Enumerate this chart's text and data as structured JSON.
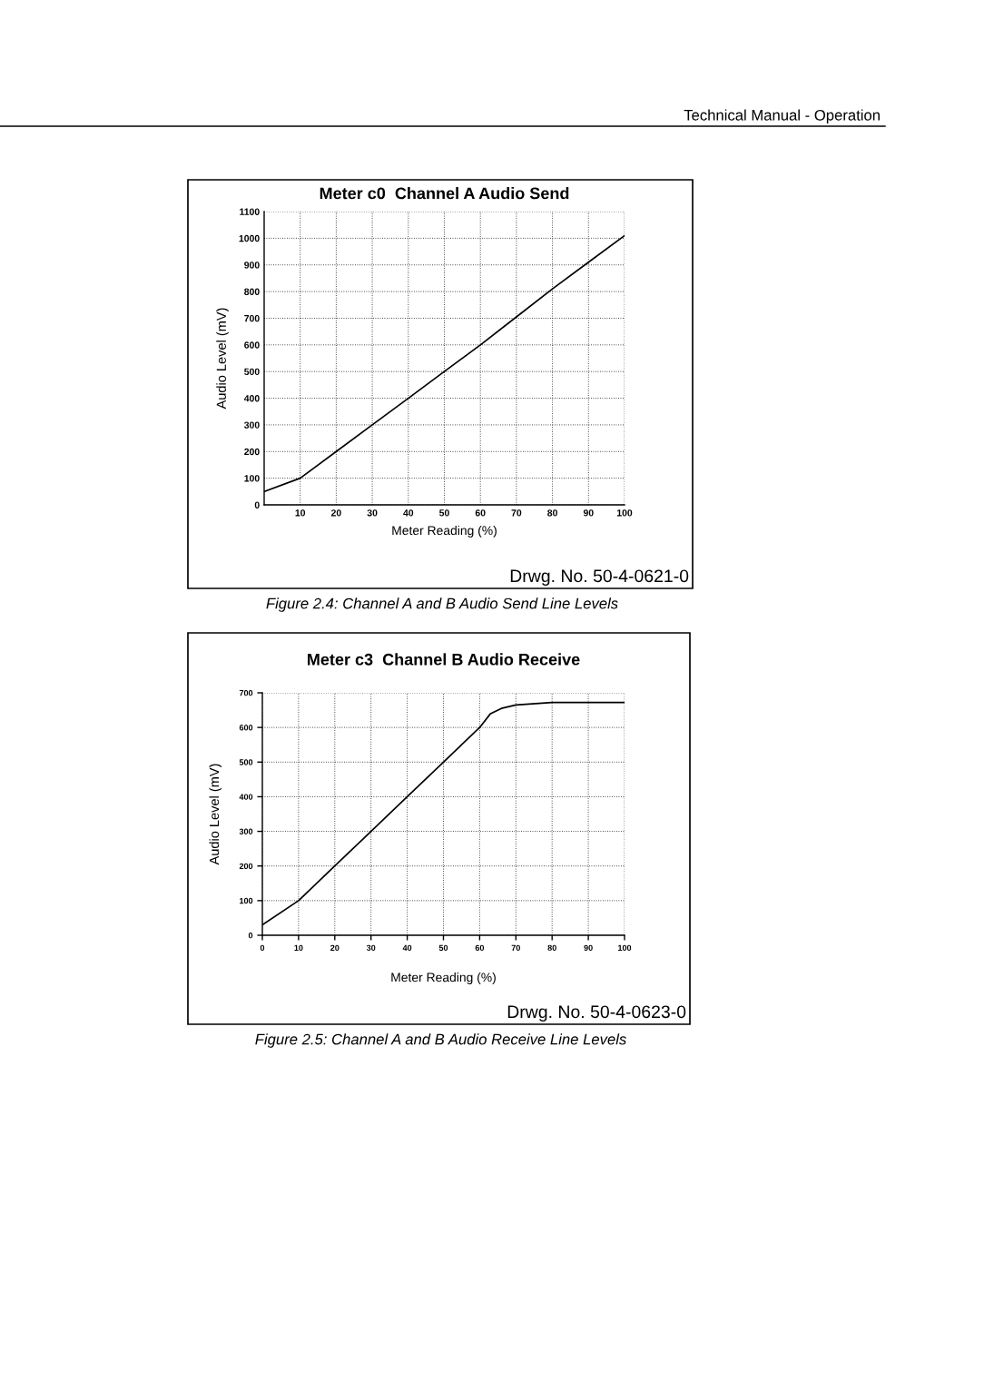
{
  "chart_data": [
    {
      "type": "line",
      "title": "Meter c0  Channel A Audio Send",
      "xlabel": "Meter Reading (%)",
      "ylabel": "Audio Level (mV)",
      "x": [
        0,
        10,
        20,
        30,
        40,
        50,
        60,
        70,
        80,
        90,
        100
      ],
      "series": [
        {
          "color": "#000000",
          "values": [
            50,
            100,
            200,
            300,
            400,
            500,
            600,
            705,
            810,
            910,
            1010
          ]
        }
      ],
      "xlim": [
        0,
        100
      ],
      "xticks": [
        10,
        20,
        30,
        40,
        50,
        60,
        70,
        80,
        90,
        100
      ],
      "ylim": [
        0,
        1100
      ],
      "yticks": [
        0,
        100,
        200,
        300,
        400,
        500,
        600,
        700,
        800,
        900,
        1000,
        1100
      ],
      "grid": true,
      "marker": "none",
      "line_style": "solid",
      "annotations": [
        "Technical Manual - Operation",
        "Drwg. No. 50-4-0621-0",
        "Figure 2.4: Channel A and B Audio Send Line Levels"
      ]
    },
    {
      "type": "line",
      "title": "Meter c3  Channel B Audio Receive",
      "xlabel": "Meter Reading (%)",
      "ylabel": "Audio Level (mV)",
      "x": [
        0,
        10,
        20,
        30,
        40,
        50,
        60,
        63,
        66,
        70,
        80,
        100
      ],
      "series": [
        {
          "color": "#000000",
          "values": [
            30,
            100,
            200,
            300,
            400,
            500,
            600,
            640,
            655,
            665,
            672,
            672
          ]
        }
      ],
      "xlim": [
        0,
        100
      ],
      "xticks": [
        0,
        10,
        20,
        30,
        40,
        50,
        60,
        70,
        80,
        90,
        100
      ],
      "ylim": [
        0,
        700
      ],
      "yticks": [
        0,
        100,
        200,
        300,
        400,
        500,
        600,
        700
      ],
      "grid": true,
      "marker": "none",
      "line_style": "solid",
      "annotations": [
        "Drwg. No. 50-4-0623-0",
        "Figure 2.5: Channel A and B Audio Receive Line Levels"
      ]
    }
  ]
}
